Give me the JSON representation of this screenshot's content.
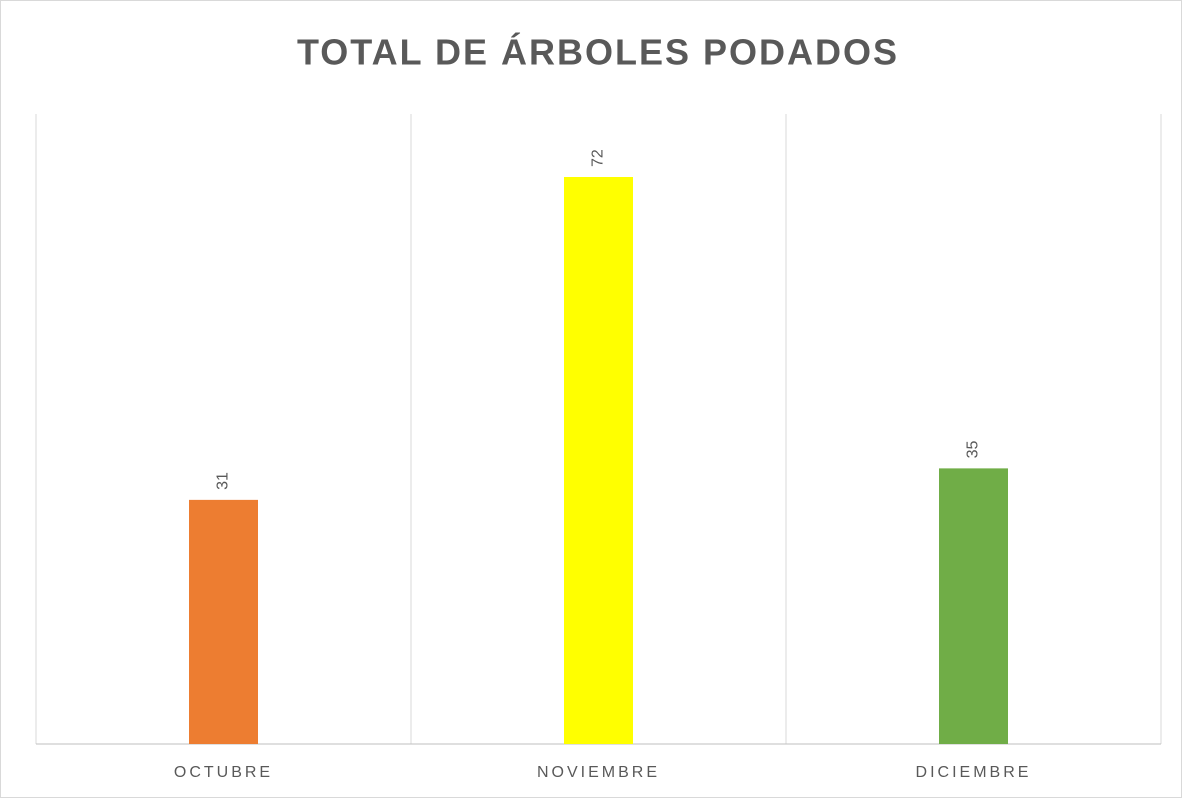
{
  "chart_data": {
    "type": "bar",
    "title": "TOTAL DE ÁRBOLES PODADOS",
    "categories": [
      "OCTUBRE",
      "NOVIEMBRE",
      "DICIEMBRE"
    ],
    "values": [
      31,
      72,
      35
    ],
    "colors": [
      "#ed7d31",
      "#ffff00",
      "#70ad47"
    ],
    "ylim": [
      0,
      80
    ]
  }
}
